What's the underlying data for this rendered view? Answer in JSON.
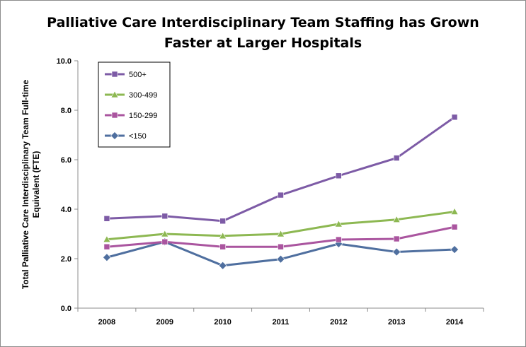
{
  "chart_data": {
    "type": "line",
    "title": [
      "Palliative Care Interdisciplinary Team Staffing has Grown",
      "Faster at Larger Hospitals"
    ],
    "xlabel": "",
    "ylabel": "Total Palliative Care Interdisciplinary Team Full-time Equivalent (FTE)",
    "x": [
      "2008",
      "2009",
      "2010",
      "2011",
      "2012",
      "2013",
      "2014"
    ],
    "ylim": [
      0,
      10
    ],
    "yticks": [
      "0.0",
      "2.0",
      "4.0",
      "6.0",
      "8.0",
      "10.0"
    ],
    "grid": false,
    "legend_position": "top-left",
    "series": [
      {
        "name": "500+",
        "color": "#7d5ba6",
        "marker": "square",
        "values": [
          3.62,
          3.72,
          3.52,
          4.57,
          5.35,
          6.07,
          7.72
        ]
      },
      {
        "name": "300-499",
        "color": "#8db852",
        "marker": "triangle",
        "values": [
          2.78,
          3.0,
          2.92,
          3.0,
          3.4,
          3.58,
          3.9
        ]
      },
      {
        "name": "150-299",
        "color": "#aa559f",
        "marker": "square",
        "values": [
          2.48,
          2.68,
          2.48,
          2.48,
          2.77,
          2.8,
          3.28
        ]
      },
      {
        "name": "<150",
        "color": "#4f6f9f",
        "marker": "diamond",
        "values": [
          2.05,
          2.68,
          1.72,
          1.98,
          2.6,
          2.27,
          2.37
        ]
      }
    ]
  }
}
